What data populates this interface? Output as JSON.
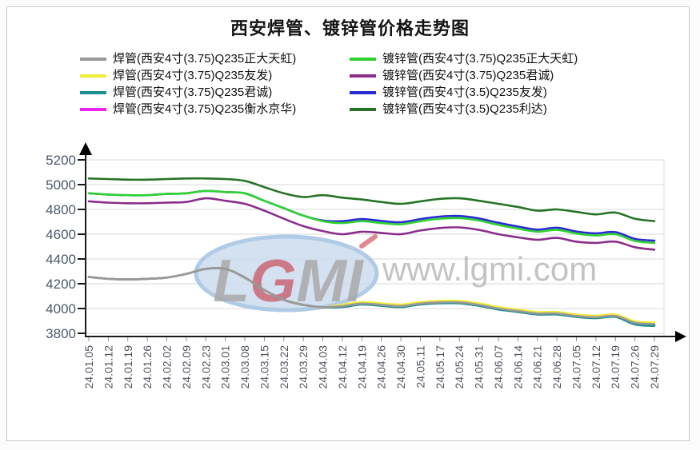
{
  "page": {
    "title": "西安焊管、镀锌管价格走势图"
  },
  "watermark": {
    "logo": "LGMI",
    "url": "www.lgmi.com"
  },
  "chart_data": {
    "type": "line",
    "title": "西安焊管、镀锌管价格走势图",
    "xlabel": "",
    "ylabel": "",
    "ylim": [
      3800,
      5200
    ],
    "y_ticks": [
      5200,
      5000,
      4800,
      4600,
      4400,
      4200,
      4000,
      3800
    ],
    "grid": true,
    "legend_position": "top",
    "x": [
      "24.01.05",
      "24.01.12",
      "24.01.19",
      "24.01.26",
      "24.02.02",
      "24.02.09",
      "24.02.23",
      "24.03.01",
      "24.03.08",
      "24.03.15",
      "24.03.22",
      "24.03.29",
      "24.04.03",
      "24.04.12",
      "24.04.19",
      "24.04.26",
      "24.04.30",
      "24.05.11",
      "24.05.17",
      "24.05.24",
      "24.05.31",
      "24.06.07",
      "24.06.14",
      "24.06.21",
      "24.06.28",
      "24.07.05",
      "24.07.12",
      "24.07.19",
      "24.07.26",
      "24.07.29"
    ],
    "series": [
      {
        "name": "焊管(西安4寸(3.75)Q235正大天虹)",
        "color": "#999999",
        "values": [
          4255,
          4240,
          4235,
          4240,
          4250,
          4280,
          4320,
          4320,
          4250,
          4150,
          4070,
          4030,
          4010,
          4020,
          4040,
          4030,
          4020,
          4040,
          4050,
          4050,
          4030,
          4000,
          3980,
          3960,
          3960,
          3940,
          3930,
          3940,
          3885,
          3875
        ]
      },
      {
        "name": "焊管(西安4寸(3.75)Q235友发)",
        "color": "#f2ee38",
        "values": [
          4255,
          4240,
          4235,
          4240,
          4250,
          4280,
          4320,
          4320,
          4250,
          4150,
          4070,
          4030,
          4010,
          4032,
          4052,
          4042,
          4032,
          4052,
          4062,
          4062,
          4042,
          4012,
          3992,
          3972,
          3972,
          3952,
          3942,
          3952,
          3897,
          3888
        ]
      },
      {
        "name": "焊管(西安4寸(3.75)Q235君诚)",
        "color": "#1b8e8e",
        "values": [
          4255,
          4240,
          4235,
          4240,
          4250,
          4280,
          4320,
          4320,
          4250,
          4150,
          4070,
          4030,
          4010,
          4012,
          4032,
          4022,
          4012,
          4032,
          4042,
          4042,
          4022,
          3992,
          3972,
          3952,
          3952,
          3932,
          3922,
          3932,
          3872,
          3860
        ]
      },
      {
        "name": "焊管(西安4寸(3.75)Q235衡水京华)",
        "color": "#ee22ee",
        "values": [
          4255,
          4240,
          4235,
          4240,
          4250,
          4280,
          4320,
          4320,
          4250,
          4150,
          4070,
          4030,
          4010,
          4017,
          4037,
          4027,
          4017,
          4037,
          4047,
          4047,
          4027,
          3997,
          3977,
          3957,
          3957,
          3937,
          3927,
          3937,
          3880,
          3868
        ]
      },
      {
        "name": "镀锌管(西安4寸(3.75)Q235正大天虹)",
        "color": "#2fd32f",
        "values": [
          4930,
          4920,
          4915,
          4915,
          4925,
          4930,
          4950,
          4940,
          4930,
          4870,
          4810,
          4750,
          4705,
          4690,
          4705,
          4690,
          4680,
          4705,
          4725,
          4730,
          4710,
          4675,
          4645,
          4620,
          4635,
          4605,
          4590,
          4600,
          4545,
          4530
        ]
      },
      {
        "name": "镀锌管(西安4寸(3.75)Q235君诚)",
        "color": "#8a2d8a",
        "values": [
          4865,
          4855,
          4850,
          4850,
          4855,
          4860,
          4890,
          4870,
          4845,
          4790,
          4725,
          4665,
          4625,
          4600,
          4620,
          4610,
          4600,
          4630,
          4650,
          4655,
          4635,
          4600,
          4575,
          4555,
          4570,
          4540,
          4530,
          4540,
          4495,
          4475
        ]
      },
      {
        "name": "镀锌管(西安4寸(3.5)Q235友发)",
        "color": "#2a2ad6",
        "values": [
          4930,
          4920,
          4915,
          4915,
          4925,
          4930,
          4950,
          4940,
          4930,
          4870,
          4810,
          4750,
          4710,
          4705,
          4722,
          4707,
          4697,
          4722,
          4742,
          4747,
          4727,
          4692,
          4662,
          4637,
          4652,
          4622,
          4607,
          4617,
          4562,
          4548
        ]
      },
      {
        "name": "镀锌管(西安4寸(3.5)Q235利达)",
        "color": "#267326",
        "values": [
          5050,
          5045,
          5040,
          5040,
          5045,
          5050,
          5050,
          5045,
          5030,
          4980,
          4930,
          4900,
          4915,
          4895,
          4880,
          4860,
          4845,
          4865,
          4885,
          4890,
          4870,
          4845,
          4820,
          4790,
          4800,
          4780,
          4760,
          4775,
          4725,
          4705
        ]
      }
    ],
    "legend_columns": [
      [
        0,
        1,
        2,
        3
      ],
      [
        4,
        5,
        6,
        7
      ]
    ],
    "draw_order": [
      6,
      4,
      5,
      7,
      3,
      1,
      2,
      0
    ]
  }
}
